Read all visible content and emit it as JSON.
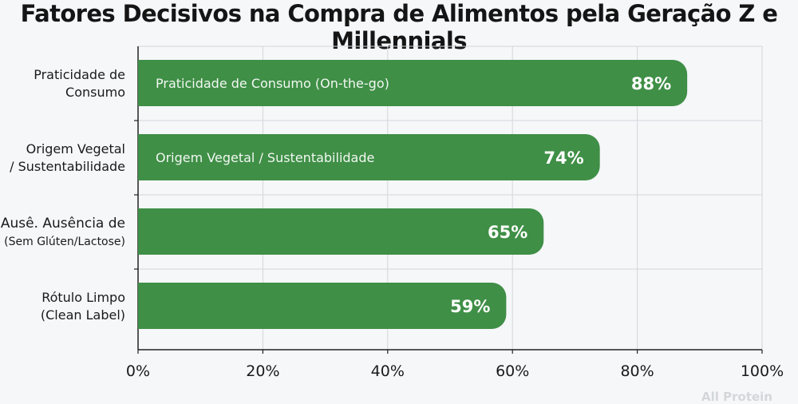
{
  "chart_data": {
    "type": "bar",
    "orientation": "horizontal",
    "title": "Fatores Decisivos na Compra de Alimentos pela Geração Z e Millennials",
    "categories": [
      [
        "Praticidade de",
        "Consumo"
      ],
      [
        "Origem Vegetal",
        "/ Sustentabilidade"
      ],
      [
        "Ausê. Ausência de",
        "(Sem Glúten/Lactose)"
      ],
      [
        "Rótulo Limpo",
        "(Clean Label)"
      ]
    ],
    "bar_labels": [
      "Praticidade de Consumo (On-the-go)",
      "Origem Vegetal / Sustentabilidade",
      "",
      ""
    ],
    "values": [
      88,
      74,
      65,
      59
    ],
    "value_labels": [
      "88%",
      "74%",
      "65%",
      "59%"
    ],
    "xlim": [
      0,
      100
    ],
    "xticks": [
      0,
      20,
      40,
      60,
      80,
      100
    ],
    "xtick_labels": [
      "0%",
      "20%",
      "40%",
      "60%",
      "80%",
      "100%"
    ],
    "grid": true,
    "bar_color": "#3f8f46",
    "source": "All Protein"
  }
}
